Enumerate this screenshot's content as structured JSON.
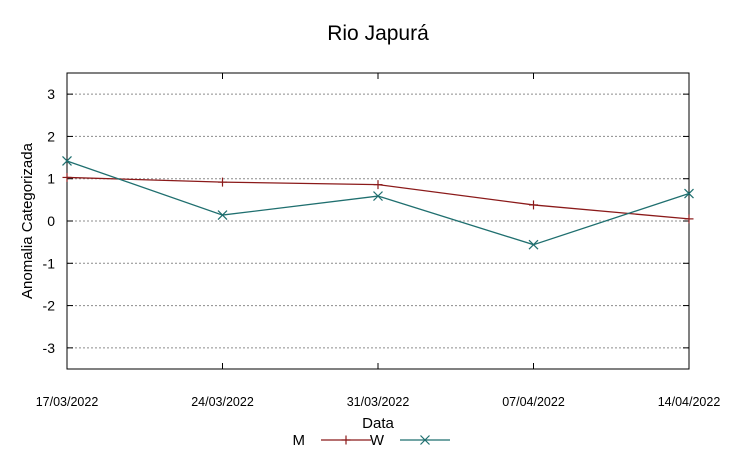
{
  "chart_data": {
    "type": "line",
    "title": "Rio Japurá",
    "xlabel": "Data",
    "ylabel": "Anomalia Categorizada",
    "categories": [
      "17/03/2022",
      "24/03/2022",
      "31/03/2022",
      "07/04/2022",
      "14/04/2022"
    ],
    "yticks": [
      "3",
      "2",
      "1",
      "0",
      "-1",
      "-2",
      "-3"
    ],
    "ylim": [
      -3.5,
      3.5
    ],
    "grid": true,
    "legend_position": "bottom",
    "series": [
      {
        "name": "M",
        "values": [
          1.03,
          0.92,
          0.86,
          0.38,
          0.05
        ],
        "color": "#8b1a1a",
        "marker": "plus"
      },
      {
        "name": "W",
        "values": [
          1.42,
          0.14,
          0.59,
          -0.56,
          0.65
        ],
        "color": "#1f6f6f",
        "marker": "cross"
      }
    ]
  }
}
